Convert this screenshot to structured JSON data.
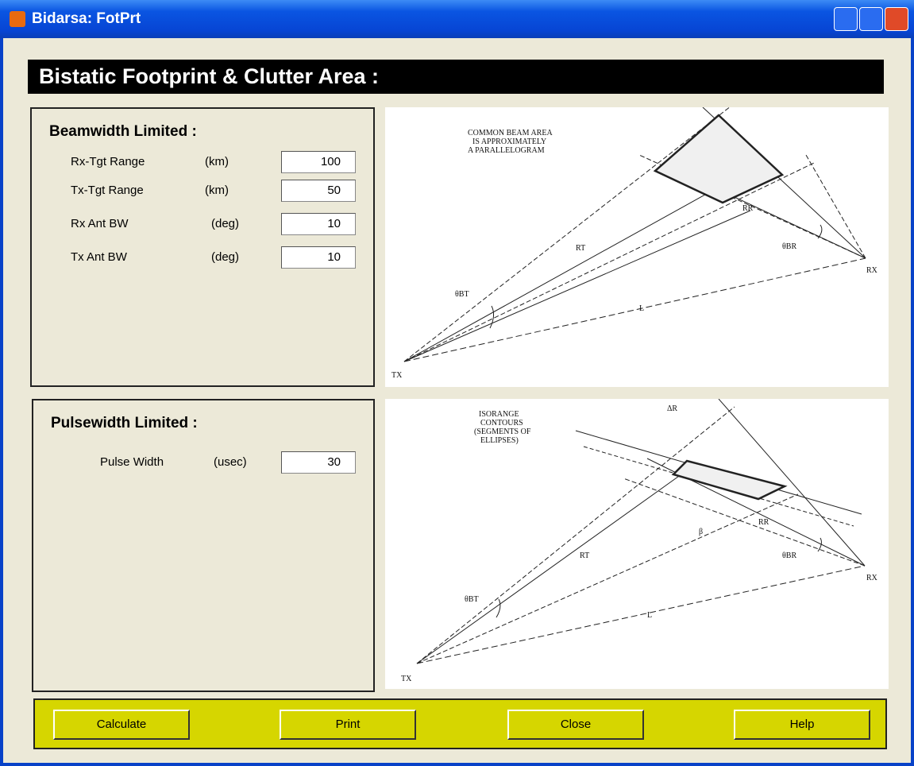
{
  "window": {
    "title": "Bidarsa: FotPrt"
  },
  "header": "Bistatic Footprint & Clutter Area :",
  "beamwidth": {
    "title": "Beamwidth Limited :",
    "fields": [
      {
        "label": "Rx-Tgt Range",
        "unit": "(km)",
        "value": 100
      },
      {
        "label": "Tx-Tgt Range",
        "unit": "(km)",
        "value": 50
      },
      {
        "label": "Rx Ant BW",
        "unit": "(deg)",
        "value": 10
      },
      {
        "label": "Tx Ant BW",
        "unit": "(deg)",
        "value": 10
      }
    ]
  },
  "pulsewidth": {
    "title": "Pulsewidth Limited :",
    "fields": [
      {
        "label": "Pulse Width",
        "unit": "(usec)",
        "value": 30
      }
    ]
  },
  "diagram1": {
    "note": [
      "COMMON BEAM AREA",
      "IS APPROXIMATELY",
      "A PARALLELOGRAM"
    ],
    "tx": "TX",
    "rx": "RX",
    "baseline": "L",
    "rt": "RT",
    "rr": "RR",
    "theta_t": "θBT",
    "theta_r": "θBR"
  },
  "diagram2": {
    "note": [
      "ISORANGE",
      "CONTOURS",
      "(SEGMENTS OF",
      "ELLIPSES)"
    ],
    "delta": "ΔR",
    "beta": "β",
    "tx": "TX",
    "rx": "RX",
    "baseline": "L",
    "rt": "RT",
    "rr": "RR",
    "theta_t": "θBT",
    "theta_r": "θBR"
  },
  "buttons": [
    "Calculate",
    "Print",
    "Close",
    "Help"
  ]
}
